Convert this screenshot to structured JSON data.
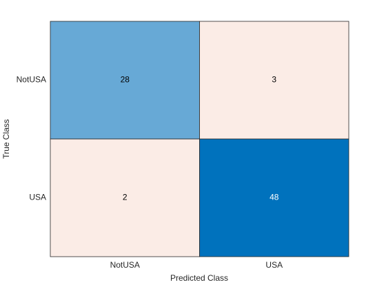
{
  "chart_data": {
    "type": "confusion",
    "xlabel": "Predicted Class",
    "ylabel": "True Class",
    "x_categories": [
      "NotUSA",
      "USA"
    ],
    "y_categories": [
      "NotUSA",
      "USA"
    ],
    "values": [
      [
        28,
        3
      ],
      [
        2,
        48
      ]
    ],
    "cell_colors": [
      [
        "#67a9d6",
        "#fbece6"
      ],
      [
        "#fbece6",
        "#0072bd"
      ]
    ]
  }
}
